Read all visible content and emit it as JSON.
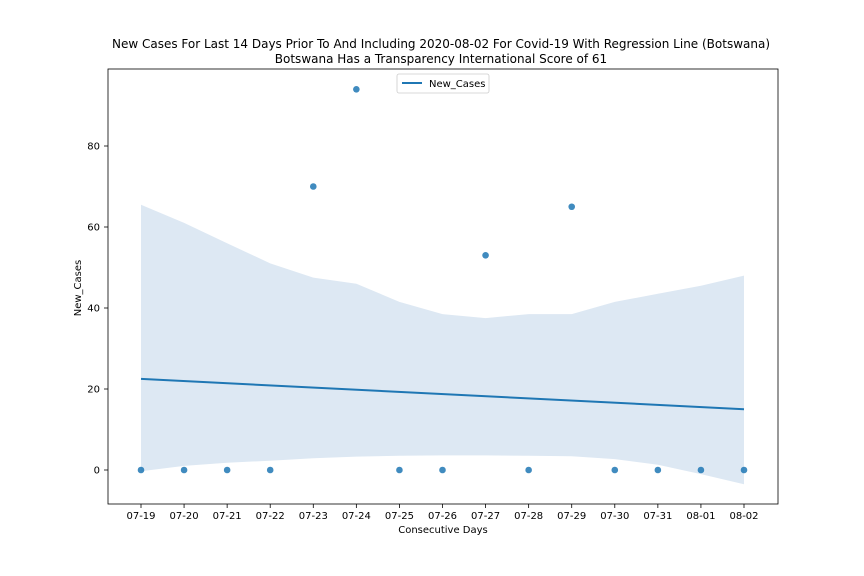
{
  "chart_data": {
    "type": "scatter",
    "title": "New Cases For Last 14 Days Prior To And Including 2020-08-02 For Covid-19 With Regression Line (Botswana)",
    "subtitle": "Botswana Has a Transparency International Score of 61",
    "xlabel": "Consecutive Days",
    "ylabel": "New_Cases",
    "categories": [
      "07-19",
      "07-20",
      "07-21",
      "07-22",
      "07-23",
      "07-24",
      "07-25",
      "07-26",
      "07-27",
      "07-28",
      "07-29",
      "07-30",
      "07-31",
      "08-01",
      "08-02"
    ],
    "series": [
      {
        "name": "New_Cases",
        "values": [
          0,
          0,
          0,
          0,
          70,
          94,
          0,
          0,
          53,
          0,
          65,
          0,
          0,
          0,
          0
        ]
      }
    ],
    "regression": {
      "start": 22.5,
      "end": 15.0,
      "ci_upper": [
        65.5,
        61,
        56,
        51,
        47.5,
        46,
        41.5,
        38.5,
        37.5,
        38.5,
        38.5,
        41.5,
        43.5,
        45.5,
        48
      ],
      "ci_lower": [
        -0.3,
        1.0,
        1.8,
        2.3,
        2.9,
        3.3,
        3.5,
        3.6,
        3.6,
        3.5,
        3.4,
        2.7,
        1.3,
        -1.0,
        -3.5
      ]
    },
    "yticks": [
      0,
      20,
      40,
      60,
      80
    ],
    "ylim": [
      -8.5,
      98.5
    ],
    "legend": {
      "label": "New_Cases",
      "position": "top-center"
    },
    "grid": false,
    "colors": {
      "points": "#1f77b4",
      "line": "#1f77b4",
      "band": "#c6dbef"
    }
  }
}
